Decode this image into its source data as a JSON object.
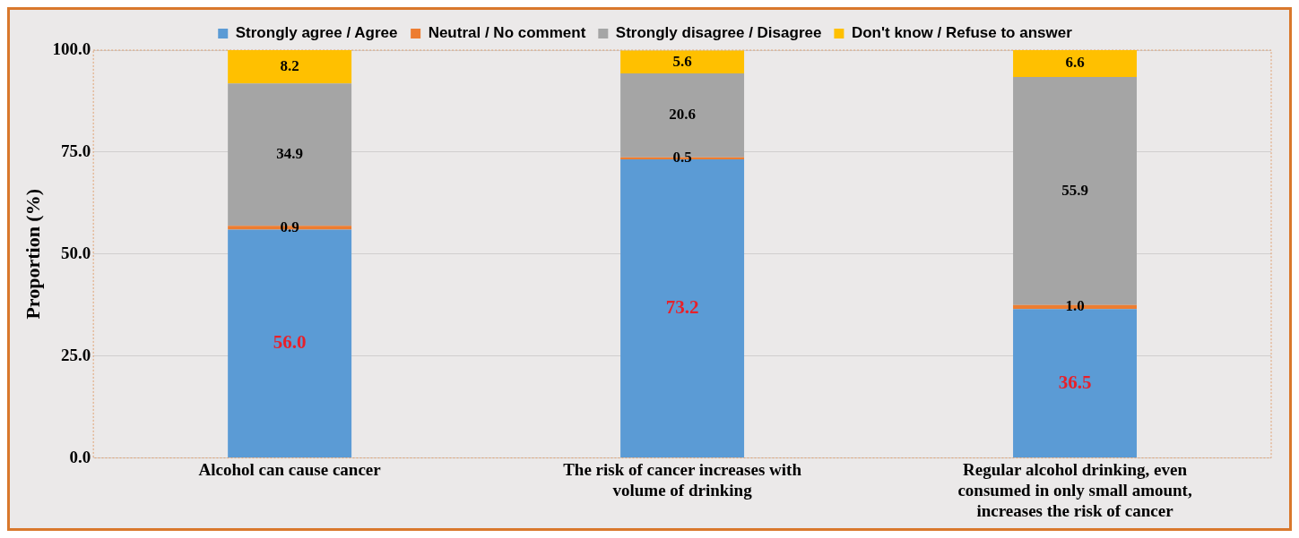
{
  "chart_data": {
    "type": "bar",
    "stacked": true,
    "ylabel": "Proportion (%)",
    "categories": [
      "Alcohol can cause cancer",
      "The risk of cancer increases with volume of drinking",
      "Regular alcohol drinking, even consumed in only small amount, increases the risk of cancer"
    ],
    "series": [
      {
        "name": "Strongly agree / Agree",
        "color": "#5b9bd5",
        "values": [
          56.0,
          73.2,
          36.5
        ],
        "value_labels": [
          "56.0",
          "73.2",
          "36.5"
        ]
      },
      {
        "name": "Neutral / No comment",
        "color": "#ed7d31",
        "values": [
          0.9,
          0.5,
          1.0
        ],
        "value_labels": [
          "0.9",
          "0.5",
          "1.0"
        ]
      },
      {
        "name": "Strongly disagree / Disagree",
        "color": "#a5a5a5",
        "values": [
          34.9,
          20.6,
          55.9
        ],
        "value_labels": [
          "34.9",
          "20.6",
          "55.9"
        ]
      },
      {
        "name": "Don't know / Refuse to answer",
        "color": "#ffc000",
        "values": [
          8.2,
          5.6,
          6.6
        ],
        "value_labels": [
          "8.2",
          "5.6",
          "6.6"
        ]
      }
    ],
    "ylim": [
      0,
      100
    ],
    "yticks": [
      {
        "value": 0,
        "label": "0.0"
      },
      {
        "value": 25,
        "label": "25.0"
      },
      {
        "value": 50,
        "label": "50.0"
      },
      {
        "value": 75,
        "label": "75.0"
      },
      {
        "value": 100,
        "label": "100.0"
      }
    ],
    "grid": "y",
    "legend": "top"
  }
}
